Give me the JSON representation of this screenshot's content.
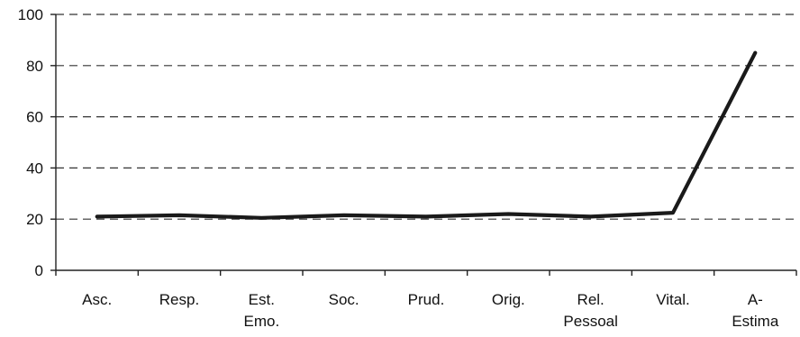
{
  "chart_data": {
    "type": "line",
    "title": "",
    "xlabel": "",
    "ylabel": "",
    "categories": [
      [
        "Asc."
      ],
      [
        "Resp."
      ],
      [
        "Est.",
        "Emo."
      ],
      [
        "Soc."
      ],
      [
        "Prud."
      ],
      [
        "Orig."
      ],
      [
        "Rel.",
        "Pessoal"
      ],
      [
        "Vital."
      ],
      [
        "A-",
        "Estima"
      ]
    ],
    "series": [
      {
        "values": [
          21,
          21.5,
          20.5,
          21.5,
          21,
          22,
          21,
          22.5,
          85
        ]
      }
    ],
    "ylim": [
      0,
      100
    ],
    "yticks": [
      0,
      20,
      40,
      60,
      80,
      100
    ],
    "grid": true,
    "gridlines": [
      20,
      40,
      60,
      80,
      100
    ],
    "legend": "none",
    "line_color": "#1a1a1a"
  }
}
